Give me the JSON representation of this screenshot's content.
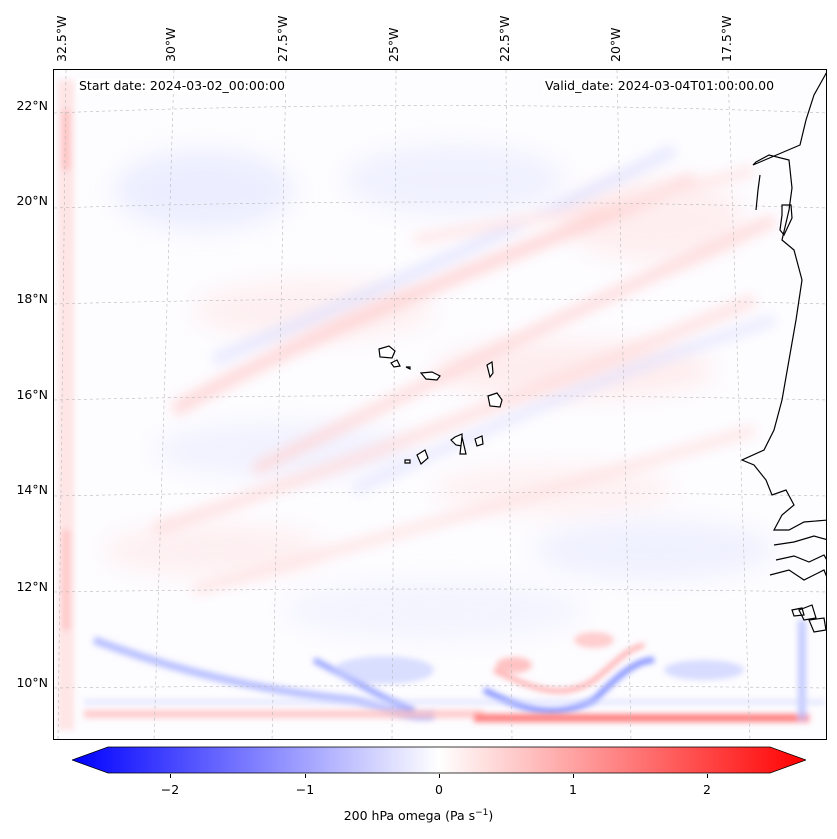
{
  "map": {
    "start_date": "Start date: 2024-03-02_00:00:00",
    "valid_date": "Valid_date: 2024-03-04T01:00:00.00",
    "lon_labels": [
      "32.5°W",
      "30°W",
      "27.5°W",
      "25°W",
      "22.5°W",
      "20°W",
      "17.5°W"
    ],
    "lat_labels": [
      "22°N",
      "20°N",
      "18°N",
      "16°N",
      "14°N",
      "12°N",
      "10°N"
    ],
    "features": [
      "Cape Verde islands",
      "West African coastline"
    ],
    "colors": {
      "negative": "#0000ff",
      "neutral": "#ffffff",
      "positive": "#ff0000",
      "coast": "#000000",
      "gridline": "#b0b0b0"
    }
  },
  "colorbar": {
    "ticks": [
      "−2",
      "−1",
      "0",
      "1",
      "2"
    ],
    "tick_values": [
      -2,
      -1,
      0,
      1,
      2
    ],
    "range": [
      -2.75,
      2.75
    ],
    "label_main": "200 hPa omega (Pa s",
    "label_sup": "−1",
    "label_end": ")"
  }
}
